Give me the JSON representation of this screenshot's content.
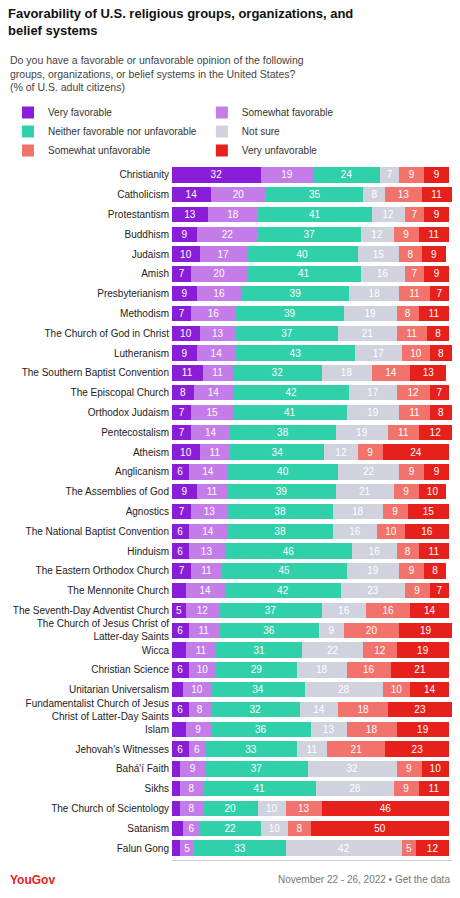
{
  "chart_data": {
    "type": "bar",
    "orientation": "horizontal",
    "stacked": true,
    "data_labels": true,
    "tick_labels": "y",
    "grid": false,
    "legend": "top",
    "title": "Favorability of U.S. religious groups, organizations, and belief systems",
    "subtitle": "Do you have a favorable or unfavorable opinion of the following groups, organizations, or belief systems in the United States? (% of U.S. adult citizens)",
    "annotations": [
      "YouGov",
      "November 22 - 26, 2022 • Get the data"
    ],
    "xlim": [
      0,
      101
    ],
    "xticks": [],
    "categories": [
      "Christianity",
      "Catholicism",
      "Protestantism",
      "Buddhism",
      "Judaism",
      "Amish",
      "Presbyterianism",
      "Methodism",
      "The Church of God in Christ",
      "Lutheranism",
      "The Southern Baptist Convention",
      "The Episcopal Church",
      "Orthodox Judaism",
      "Pentecostalism",
      "Atheism",
      "Anglicanism",
      "The Assemblies of God",
      "Agnostics",
      "The National Baptist Convention",
      "Hinduism",
      "The Eastern Orthodox Church",
      "The Mennonite Church",
      "The Seventh-Day Adventist Church",
      "The Church of Jesus Christ of Latter-day Saints",
      "Wicca",
      "Christian Science",
      "Unitarian Universalism",
      "Fundamentalist Church of Jesus Christ of Latter-Day Saints",
      "Islam",
      "Jehovah's Witnesses",
      "Bahá'í Faith",
      "Sikhs",
      "The Church of Scientology",
      "Satanism",
      "Falun Gong"
    ],
    "series": [
      {
        "name": "Very favorable",
        "color": "#8a1ed8",
        "values": [
          32,
          14,
          13,
          9,
          10,
          7,
          9,
          7,
          10,
          9,
          11,
          8,
          7,
          7,
          10,
          6,
          9,
          7,
          6,
          6,
          7,
          5,
          5,
          6,
          5,
          6,
          4,
          6,
          5,
          6,
          3,
          3,
          3,
          4,
          3
        ],
        "value_labels": [
          "32",
          "14",
          "13",
          "9",
          "10",
          "7",
          "9",
          "7",
          "10",
          "9",
          "11",
          "8",
          "7",
          "7",
          "10",
          "6",
          "9",
          "7",
          "6",
          "6",
          "7",
          null,
          "5",
          "6",
          null,
          "6",
          null,
          "6",
          null,
          "6",
          null,
          null,
          null,
          null,
          null
        ]
      },
      {
        "name": "Somewhat favorable",
        "color": "#c47ce9",
        "values": [
          19,
          20,
          18,
          22,
          17,
          20,
          16,
          16,
          13,
          14,
          11,
          14,
          15,
          14,
          11,
          14,
          11,
          13,
          14,
          13,
          11,
          14,
          12,
          11,
          11,
          10,
          10,
          8,
          9,
          6,
          9,
          8,
          8,
          6,
          5
        ]
      },
      {
        "name": "Neither favorable nor unfavorable",
        "color": "#30d0aa",
        "values": [
          24,
          35,
          41,
          37,
          40,
          41,
          39,
          39,
          37,
          43,
          32,
          42,
          41,
          38,
          34,
          40,
          39,
          38,
          38,
          46,
          45,
          42,
          37,
          36,
          31,
          29,
          34,
          32,
          36,
          33,
          37,
          41,
          20,
          22,
          33
        ]
      },
      {
        "name": "Not sure",
        "color": "#d0d2dd",
        "values": [
          7,
          8,
          12,
          12,
          15,
          16,
          18,
          19,
          21,
          17,
          18,
          17,
          19,
          19,
          12,
          22,
          21,
          18,
          16,
          16,
          19,
          23,
          16,
          9,
          22,
          18,
          28,
          14,
          13,
          11,
          32,
          28,
          10,
          10,
          42
        ]
      },
      {
        "name": "Somewhat unfavorable",
        "color": "#f1736c",
        "values": [
          9,
          13,
          7,
          9,
          8,
          7,
          11,
          8,
          11,
          10,
          14,
          12,
          11,
          11,
          9,
          9,
          9,
          9,
          10,
          8,
          9,
          9,
          16,
          20,
          12,
          16,
          10,
          18,
          18,
          21,
          9,
          9,
          13,
          8,
          5
        ]
      },
      {
        "name": "Very unfavorable",
        "color": "#e6211c",
        "values": [
          9,
          11,
          9,
          11,
          9,
          9,
          7,
          11,
          8,
          8,
          13,
          7,
          8,
          12,
          24,
          9,
          10,
          15,
          16,
          11,
          8,
          7,
          14,
          19,
          19,
          21,
          14,
          23,
          19,
          23,
          10,
          11,
          46,
          50,
          12
        ]
      }
    ]
  }
}
